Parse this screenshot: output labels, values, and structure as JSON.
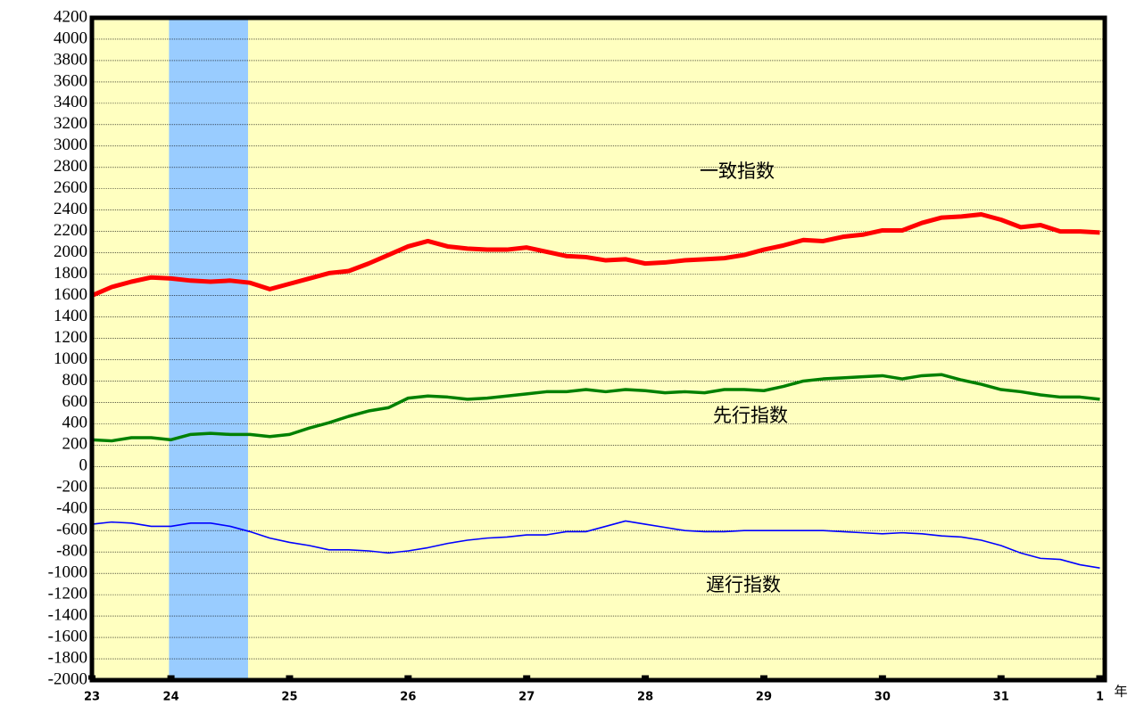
{
  "chart_data": {
    "type": "line",
    "x_label": "年",
    "x": [
      0,
      2,
      4,
      6,
      8,
      10,
      12,
      14,
      16,
      18,
      20,
      22,
      24,
      26,
      28,
      30,
      32,
      34,
      36,
      38,
      40,
      42,
      44,
      46,
      48,
      50,
      52,
      54,
      56,
      58,
      60,
      62,
      64,
      66,
      68,
      70,
      72,
      74,
      76,
      78,
      80,
      82,
      84,
      86,
      88,
      90,
      92,
      94,
      96,
      98,
      100,
      102
    ],
    "series": [
      {
        "name": "一致指数",
        "color": "#ff0000",
        "width": 5,
        "values": [
          1600,
          1680,
          1730,
          1770,
          1760,
          1740,
          1730,
          1740,
          1720,
          1660,
          1710,
          1760,
          1810,
          1830,
          1900,
          1980,
          2060,
          2110,
          2060,
          2040,
          2030,
          2030,
          2050,
          2010,
          1970,
          1960,
          1930,
          1940,
          1900,
          1910,
          1930,
          1940,
          1950,
          1980,
          2030,
          2070,
          2120,
          2110,
          2150,
          2170,
          2210,
          2210,
          2280,
          2330,
          2340,
          2360,
          2310,
          2240,
          2260,
          2200,
          2200,
          2190
        ]
      },
      {
        "name": "先行指数",
        "color": "#008000",
        "width": 3.5,
        "values": [
          250,
          240,
          270,
          270,
          250,
          300,
          310,
          300,
          300,
          280,
          300,
          360,
          410,
          470,
          520,
          550,
          640,
          660,
          650,
          630,
          640,
          660,
          680,
          700,
          700,
          720,
          700,
          720,
          710,
          690,
          700,
          690,
          720,
          720,
          710,
          750,
          800,
          820,
          830,
          840,
          850,
          820,
          850,
          860,
          810,
          770,
          720,
          700,
          670,
          650,
          650,
          630
        ]
      },
      {
        "name": "遅行指数",
        "color": "#0000ff",
        "width": 1.6,
        "values": [
          -540,
          -520,
          -530,
          -560,
          -560,
          -530,
          -530,
          -560,
          -610,
          -670,
          -710,
          -740,
          -780,
          -780,
          -790,
          -810,
          -790,
          -760,
          -720,
          -690,
          -670,
          -660,
          -640,
          -640,
          -610,
          -610,
          -560,
          -510,
          -540,
          -570,
          -600,
          -610,
          -610,
          -600,
          -600,
          -600,
          -600,
          -600,
          -610,
          -620,
          -630,
          -620,
          -630,
          -650,
          -660,
          -690,
          -740,
          -810,
          -860,
          -870,
          -920,
          -950
        ]
      }
    ],
    "shaded_x": [
      7.8,
      15.8
    ],
    "shade_color": "#99ccff",
    "background": "#ffffc0",
    "xlim": [
      0,
      102.5
    ],
    "xticks": [
      {
        "value": 0,
        "label": "23"
      },
      {
        "value": 8,
        "label": "24"
      },
      {
        "value": 20,
        "label": "25"
      },
      {
        "value": 32,
        "label": "26"
      },
      {
        "value": 44,
        "label": "27"
      },
      {
        "value": 56,
        "label": "28"
      },
      {
        "value": 68,
        "label": "29"
      },
      {
        "value": 80,
        "label": "30"
      },
      {
        "value": 92,
        "label": "31"
      },
      {
        "value": 102,
        "label": "1"
      }
    ],
    "ylim": [
      -2000,
      4200
    ],
    "yticks": [
      -2000,
      -1800,
      -1600,
      -1400,
      -1200,
      -1000,
      -800,
      -600,
      -400,
      -200,
      0,
      200,
      400,
      600,
      800,
      1000,
      1200,
      1400,
      1600,
      1800,
      2000,
      2200,
      2400,
      2600,
      2800,
      3000,
      3200,
      3400,
      3600,
      3800,
      4000,
      4200
    ],
    "grid": true
  }
}
